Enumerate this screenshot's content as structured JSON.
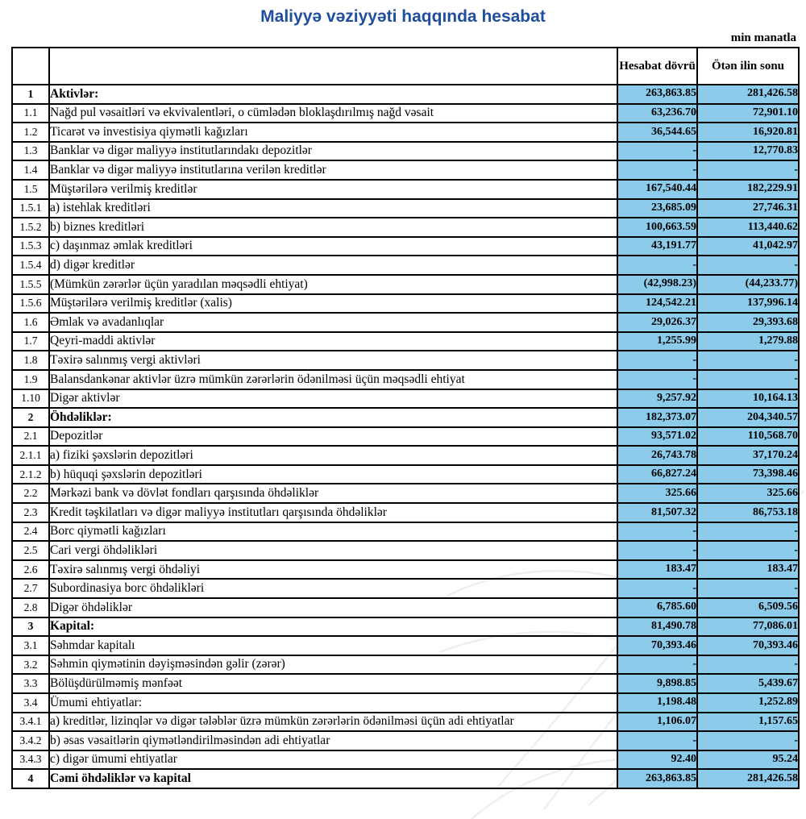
{
  "title": "Maliyyə vəziyyəti haqqında hesabat",
  "unit_note": "min manatla",
  "colors": {
    "title_blue": "#1F4E9F",
    "value_cell_bg": "#8DCBEB",
    "grid_border": "#000000",
    "watermark_gray": "#efefef"
  },
  "table": {
    "columns": {
      "current": "Hesabat dövrü",
      "previous": "Ötən ilin sonu"
    },
    "rows": [
      {
        "num": "1",
        "label": "Aktivlər:",
        "current": "263,863.85",
        "previous": "281,426.58",
        "bold": true
      },
      {
        "num": "1.1",
        "label": "Nağd pul vəsaitləri və  ekvivalentləri, o cümlədən bloklaşdırılmış nağd vəsait",
        "current": "63,236.70",
        "previous": "72,901.10",
        "bold": false
      },
      {
        "num": "1.2",
        "label": "Ticarət və investisiya qiymətli kağızları",
        "current": "36,544.65",
        "previous": "16,920.81",
        "bold": false
      },
      {
        "num": "1.3",
        "label": "Banklar və digər maliyyə institutlarındakı depozitlər",
        "current": "-",
        "previous": "12,770.83",
        "bold": false
      },
      {
        "num": "1.4",
        "label": "Banklar və digər maliyyə institutlarına verilən kreditlər",
        "current": "-",
        "previous": "-",
        "bold": false
      },
      {
        "num": "1.5",
        "label": "Müştərilərə verilmiş kreditlər",
        "current": "167,540.44",
        "previous": "182,229.91",
        "bold": false
      },
      {
        "num": "1.5.1",
        "label": "a) istehlak kreditləri",
        "current": "23,685.09",
        "previous": "27,746.31",
        "bold": false
      },
      {
        "num": "1.5.2",
        "label": "b) biznes kreditləri",
        "current": "100,663.59",
        "previous": "113,440.62",
        "bold": false
      },
      {
        "num": "1.5.3",
        "label": "c) daşınmaz əmlak kreditləri",
        "current": "43,191.77",
        "previous": "41,042.97",
        "bold": false
      },
      {
        "num": "1.5.4",
        "label": "d) digər kreditlər",
        "current": "-",
        "previous": "-",
        "bold": false
      },
      {
        "num": "1.5.5",
        "label": "(Mümkün zərərlər üçün yaradılan məqsədli ehtiyat)",
        "current": "(42,998.23)",
        "previous": "(44,233.77)",
        "bold": false
      },
      {
        "num": "1.5.6",
        "label": "Müştərilərə verilmiş kreditlər (xalis)",
        "current": "124,542.21",
        "previous": "137,996.14",
        "bold": false
      },
      {
        "num": "1.6",
        "label": "Əmlak və avadanlıqlar",
        "current": "29,026.37",
        "previous": "29,393.68",
        "bold": false
      },
      {
        "num": "1.7",
        "label": "Qeyri-maddi aktivlər",
        "current": "1,255.99",
        "previous": "1,279.88",
        "bold": false
      },
      {
        "num": "1.8",
        "label": "Təxirə salınmış vergi aktivləri",
        "current": "-",
        "previous": "-",
        "bold": false
      },
      {
        "num": "1.9",
        "label": "Balansdankənar aktivlər üzrə mümkün zərərlərin ödənilməsi üçün məqsədli ehtiyat",
        "current": "-",
        "previous": "-",
        "bold": false
      },
      {
        "num": "1.10",
        "label": "Digər aktivlər",
        "current": "9,257.92",
        "previous": "10,164.13",
        "bold": false
      },
      {
        "num": "2",
        "label": "Öhdəliklər:",
        "current": "182,373.07",
        "previous": "204,340.57",
        "bold": true
      },
      {
        "num": "2.1",
        "label": "Depozitlər",
        "current": "93,571.02",
        "previous": "110,568.70",
        "bold": false
      },
      {
        "num": "2.1.1",
        "label": "a) fiziki şəxslərin depozitləri",
        "current": "26,743.78",
        "previous": "37,170.24",
        "bold": false
      },
      {
        "num": "2.1.2",
        "label": "b) hüquqi şəxslərin depozitləri",
        "current": "66,827.24",
        "previous": "73,398.46",
        "bold": false
      },
      {
        "num": "2.2",
        "label": "Mərkəzi bank və dövlət fondları qarşısında öhdəliklər",
        "current": "325.66",
        "previous": "325.66",
        "bold": false
      },
      {
        "num": "2.3",
        "label": "Kredit təşkilatları və digər maliyyə institutları qarşısında öhdəliklər",
        "current": "81,507.32",
        "previous": "86,753.18",
        "bold": false
      },
      {
        "num": "2.4",
        "label": "Borc qiymətli kağızları",
        "current": "-",
        "previous": "-",
        "bold": false
      },
      {
        "num": "2.5",
        "label": "Cari vergi öhdəlikləri",
        "current": "-",
        "previous": "-",
        "bold": false
      },
      {
        "num": "2.6",
        "label": "Təxirə salınmış vergi öhdəliyi",
        "current": "183.47",
        "previous": "183.47",
        "bold": false
      },
      {
        "num": "2.7",
        "label": "Subordinasiya borc öhdəlikləri",
        "current": "-",
        "previous": "-",
        "bold": false
      },
      {
        "num": "2.8",
        "label": "Digər öhdəliklər",
        "current": "6,785.60",
        "previous": "6,509.56",
        "bold": false
      },
      {
        "num": "3",
        "label": "Kapital:",
        "current": "81,490.78",
        "previous": "77,086.01",
        "bold": true
      },
      {
        "num": "3.1",
        "label": "Səhmdar kapitalı",
        "current": "70,393.46",
        "previous": "70,393.46",
        "bold": false
      },
      {
        "num": "3.2",
        "label": "Səhmin qiymətinin dəyişməsindən gəlir (zərər)",
        "current": "-",
        "previous": "-",
        "bold": false
      },
      {
        "num": "3.3",
        "label": "Bölüşdürülməmiş mənfəət",
        "current": "9,898.85",
        "previous": "5,439.67",
        "bold": false
      },
      {
        "num": "3.4",
        "label": "Ümumi ehtiyatlar:",
        "current": "1,198.48",
        "previous": "1,252.89",
        "bold": false
      },
      {
        "num": "3.4.1",
        "label": "a) kreditlər, lizinqlər və digər tələblər üzrə mümkün zərərlərin ödənilməsi üçün adi ehtiyatlar",
        "current": "1,106.07",
        "previous": "1,157.65",
        "bold": false
      },
      {
        "num": "3.4.2",
        "label": "b) əsas vəsaitlərin qiymətləndirilməsindən adi ehtiyatlar",
        "current": "-",
        "previous": "-",
        "bold": false
      },
      {
        "num": "3.4.3",
        "label": "c) digər ümumi ehtiyatlar",
        "current": "92.40",
        "previous": "95.24",
        "bold": false
      },
      {
        "num": "4",
        "label": "Cəmi öhdəliklər və kapital",
        "current": "263,863.85",
        "previous": "281,426.58",
        "bold": true
      }
    ]
  }
}
